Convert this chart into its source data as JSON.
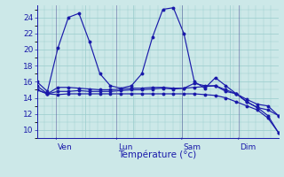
{
  "background_color": "#cce8e8",
  "grid_color": "#99cccc",
  "line_color": "#1a1aaa",
  "xlabel": "Température (°c)",
  "xlabel_color": "#1a1aaa",
  "tick_color": "#1a1aaa",
  "ylim": [
    9.0,
    25.5
  ],
  "yticks": [
    10,
    12,
    14,
    16,
    18,
    20,
    22,
    24
  ],
  "day_labels": [
    "Ven",
    "Lun",
    "Sam",
    "Dim"
  ],
  "day_positions": [
    0.08,
    0.33,
    0.6,
    0.835
  ],
  "lines": [
    [
      16.0,
      14.8,
      20.2,
      24.0,
      24.5,
      21.0,
      17.0,
      15.5,
      15.2,
      15.5,
      17.0,
      21.5,
      25.0,
      25.2,
      22.0,
      16.0,
      15.2,
      16.5,
      15.5,
      14.5,
      13.5,
      12.8,
      11.8,
      9.7
    ],
    [
      15.5,
      14.5,
      15.3,
      15.3,
      15.2,
      15.1,
      15.0,
      15.0,
      15.1,
      15.2,
      15.2,
      15.3,
      15.3,
      15.2,
      15.2,
      15.8,
      15.5,
      15.5,
      15.0,
      14.5,
      13.5,
      12.8,
      12.5,
      11.8
    ],
    [
      15.0,
      14.5,
      14.8,
      14.8,
      14.9,
      14.8,
      14.8,
      14.8,
      14.9,
      15.0,
      15.0,
      15.1,
      15.2,
      15.1,
      15.2,
      15.3,
      15.4,
      15.5,
      14.8,
      14.5,
      13.8,
      13.2,
      13.0,
      11.8
    ],
    [
      15.0,
      14.5,
      14.4,
      14.5,
      14.5,
      14.5,
      14.5,
      14.5,
      14.5,
      14.5,
      14.5,
      14.5,
      14.5,
      14.5,
      14.5,
      14.5,
      14.4,
      14.3,
      14.0,
      13.5,
      13.0,
      12.5,
      11.5,
      9.7
    ]
  ],
  "xlim": [
    0,
    1
  ]
}
